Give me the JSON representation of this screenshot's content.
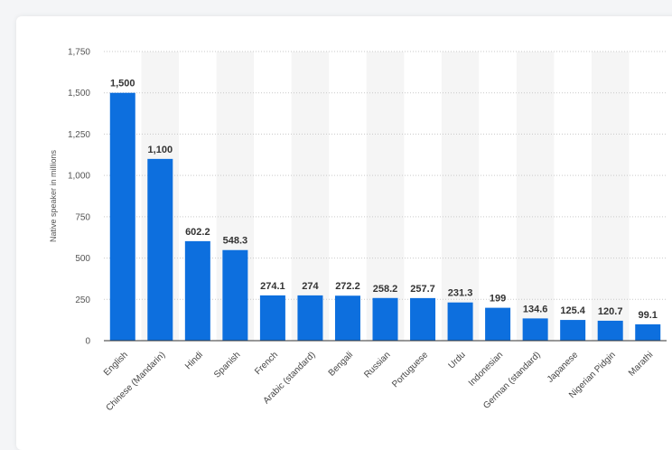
{
  "chart_data": {
    "type": "bar",
    "title": "",
    "xlabel": "",
    "ylabel": "Native speaker in millions",
    "ylim": [
      0,
      1750
    ],
    "yticks": [
      0,
      250,
      500,
      750,
      1000,
      1250,
      1500,
      1750
    ],
    "ytick_labels": [
      "0",
      "250",
      "500",
      "750",
      "1,000",
      "1,250",
      "1,500",
      "1,750"
    ],
    "grid": true,
    "bar_color": "#0d6fde",
    "band_color": "#f5f5f5",
    "categories": [
      "English",
      "Chinese (Mandarin)",
      "Hindi",
      "Spanish",
      "French",
      "Arabic (standard)",
      "Bengali",
      "Russian",
      "Portuguese",
      "Urdu",
      "Indonesian",
      "German (standard)",
      "Japanese",
      "Nigerian Pidgin",
      "Marathi"
    ],
    "values": [
      1500,
      1100,
      602.2,
      548.3,
      274.1,
      274,
      272.2,
      258.2,
      257.7,
      231.3,
      199,
      134.6,
      125.4,
      120.7,
      99.1
    ],
    "value_labels": [
      "1,500",
      "1,100",
      "602.2",
      "548.3",
      "274.1",
      "274",
      "272.2",
      "258.2",
      "257.7",
      "231.3",
      "199",
      "134.6",
      "125.4",
      "120.7",
      "99.1"
    ]
  }
}
